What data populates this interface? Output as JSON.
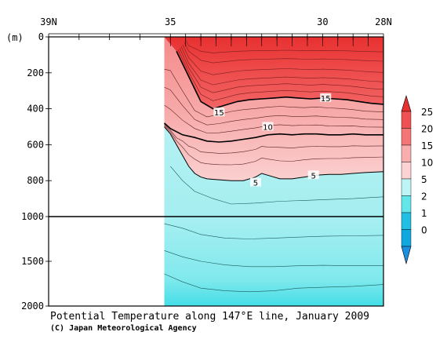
{
  "chart_data": {
    "type": "heatmap",
    "title": "Potential Temperature along 147°E line, January 2009",
    "credit": "(C) Japan Meteorological Agency",
    "x_axis": {
      "direction": "latitude decreasing to the right",
      "range_deg": [
        39,
        28
      ],
      "tick_labels": [
        {
          "value": 39,
          "label": "39N"
        },
        {
          "value": 35,
          "label": "35"
        },
        {
          "value": 30,
          "label": "30"
        },
        {
          "value": 28,
          "label": "28N"
        }
      ],
      "minor_ticks_deg": [
        39,
        38,
        37,
        36,
        35,
        34.5,
        34,
        33.5,
        33,
        32.5,
        32,
        31.5,
        31,
        30.5,
        30,
        29.5,
        29,
        28.5,
        28
      ]
    },
    "y_axis": {
      "unit_label": "(m)",
      "upper_panel": {
        "range_m": [
          0,
          1000
        ],
        "tick_labels": [
          "0",
          "200",
          "400",
          "600",
          "800",
          "1000"
        ],
        "tick_values": [
          0,
          200,
          400,
          600,
          800,
          1000
        ]
      },
      "lower_panel": {
        "range_m": [
          1000,
          2000
        ],
        "tick_labels": [
          "1500",
          "2000"
        ],
        "tick_values": [
          1500,
          2000
        ]
      }
    },
    "data_extent_lat": [
      35.2,
      28
    ],
    "colorbar": {
      "levels": [
        "25",
        "20",
        "15",
        "10",
        "5",
        "2",
        "1",
        "0"
      ],
      "colors": [
        "#e83030",
        "#ee5252",
        "#f47575",
        "#f8aeae",
        "#fbd3d3",
        "#bff4f4",
        "#63e6ea",
        "#22bfe2",
        "#11a8e0",
        "#1d8fe0"
      ]
    },
    "contour_labels": [
      {
        "value": "15",
        "lat": 29.9,
        "depth_m": 340
      },
      {
        "value": "15",
        "lat": 33.4,
        "depth_m": 420
      },
      {
        "value": "10",
        "lat": 31.8,
        "depth_m": 500
      },
      {
        "value": "5",
        "lat": 30.3,
        "depth_m": 770
      },
      {
        "value": "5",
        "lat": 32.2,
        "depth_m": 810
      }
    ],
    "isotherms": {
      "t15_lat": [
        34.8,
        34.4,
        34.0,
        33.6,
        33.2,
        32.8,
        32.4,
        32.0,
        31.6,
        31.2,
        30.8,
        30.4,
        30.0,
        29.6,
        29.2,
        28.8,
        28.4,
        28.0
      ],
      "t15_depth_m": [
        80,
        220,
        360,
        400,
        380,
        360,
        350,
        345,
        340,
        335,
        340,
        345,
        340,
        345,
        350,
        360,
        370,
        375
      ],
      "t10_lat": [
        35.2,
        35.0,
        34.6,
        34.2,
        33.8,
        33.4,
        33.0,
        32.6,
        32.2,
        31.8,
        31.4,
        31.0,
        30.6,
        30.2,
        29.8,
        29.4,
        29.0,
        28.6,
        28.0
      ],
      "t10_depth_m": [
        480,
        510,
        545,
        560,
        580,
        585,
        580,
        570,
        560,
        545,
        540,
        545,
        540,
        540,
        545,
        545,
        540,
        545,
        545
      ],
      "t5_lat": [
        35.2,
        35.0,
        34.8,
        34.6,
        34.4,
        34.2,
        34.0,
        33.8,
        33.4,
        33.0,
        32.6,
        32.2,
        32.0,
        31.8,
        31.4,
        31.0,
        30.6,
        30.2,
        29.8,
        29.4,
        29.0,
        28.6,
        28.0
      ],
      "t5_depth_m": [
        500,
        540,
        600,
        660,
        720,
        760,
        780,
        790,
        795,
        800,
        800,
        780,
        760,
        770,
        790,
        790,
        780,
        770,
        765,
        765,
        760,
        755,
        750
      ]
    }
  }
}
